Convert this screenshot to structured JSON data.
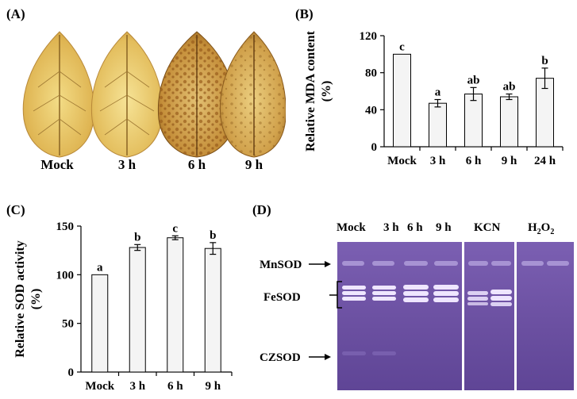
{
  "panels": {
    "a": "(A)",
    "b": "(B)",
    "c": "(C)",
    "d": "(D)"
  },
  "panel_a": {
    "leaf_labels": [
      "Mock",
      "3 h",
      "6 h",
      "9 h"
    ]
  },
  "chart_data": [
    {
      "type": "bar",
      "title": "",
      "xlabel": "",
      "ylabel_lines": [
        "Relative MDA content",
        "(%)"
      ],
      "categories": [
        "Mock",
        "3 h",
        "6 h",
        "9 h",
        "24 h"
      ],
      "values": [
        100,
        47,
        57,
        54,
        74
      ],
      "errors": [
        0,
        4,
        7,
        3,
        11
      ],
      "letters": [
        "c",
        "a",
        "ab",
        "ab",
        "b"
      ],
      "ylim": [
        0,
        120
      ],
      "yticks": [
        0,
        40,
        80,
        120
      ],
      "ytick_labels": [
        "0",
        "40",
        "80",
        "120"
      ],
      "grid": false
    },
    {
      "type": "bar",
      "title": "",
      "xlabel": "",
      "ylabel_lines": [
        "Relative SOD activity",
        "(%)"
      ],
      "categories": [
        "Mock",
        "3 h",
        "6 h",
        "9 h"
      ],
      "values": [
        100,
        128,
        138,
        127
      ],
      "errors": [
        0,
        3,
        2,
        6
      ],
      "letters": [
        "a",
        "b",
        "c",
        "b"
      ],
      "ylim": [
        0,
        150
      ],
      "yticks": [
        0,
        50,
        100,
        150
      ],
      "ytick_labels": [
        "0",
        "50",
        "100",
        "150"
      ],
      "grid": false
    }
  ],
  "panel_d": {
    "lane_labels": [
      "Mock",
      "3 h",
      "6 h",
      "9 h"
    ],
    "kcn_label": "KCN",
    "h2o2_label_main": "H",
    "h2o2_label_sub": "2",
    "h2o2_label_main2": "O",
    "h2o2_label_sub2": "2",
    "row_labels": [
      "MnSOD",
      "FeSOD",
      "CZSOD"
    ],
    "gel_color": "#6a4fa0"
  }
}
